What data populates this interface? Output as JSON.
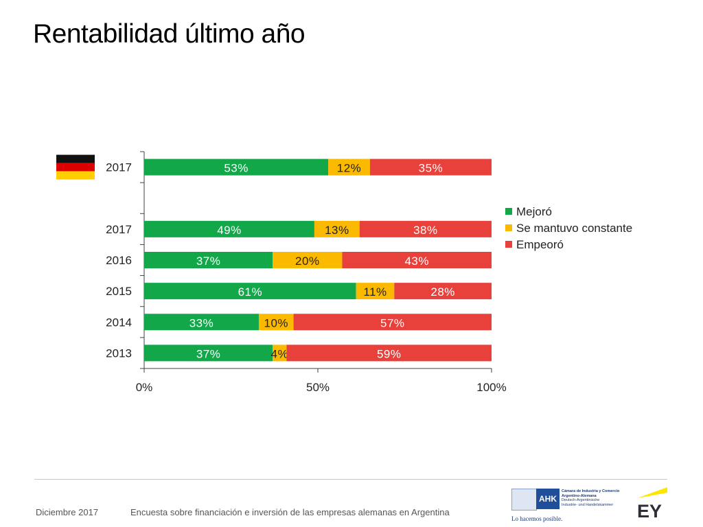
{
  "page_title": "Rentabilidad último año",
  "footer": {
    "date": "Diciembre 2017",
    "text": "Encuesta sobre financiación e inversión de las empresas alemanas en Argentina"
  },
  "logos": {
    "ahk_tag": "AHK",
    "ahk_name_lines": [
      "Cámara de Industria y Comercio",
      "Argentino-Alemana",
      "Deutsch-Argentinische",
      "Industrie- und Handelskammer"
    ],
    "ahk_slogan": "Lo hacemos posible.",
    "ey": "EY"
  },
  "colors": {
    "Mejoró": "#12a84a",
    "Se mantuvo constante": "#fbb900",
    "Empeoró": "#e8403a",
    "flag": [
      "#111111",
      "#dd0000",
      "#ffce00"
    ]
  },
  "chart_data": {
    "type": "bar",
    "orientation": "horizontal",
    "stacked": true,
    "percent_stacked": true,
    "categories": [
      "2017",
      "",
      "2017",
      "2016",
      "2015",
      "2014",
      "2013"
    ],
    "category_icons": [
      "flag-germany-icon",
      null,
      null,
      null,
      null,
      null,
      null
    ],
    "series": [
      {
        "name": "Mejoró",
        "values": [
          53,
          null,
          49,
          37,
          61,
          33,
          37
        ],
        "labels": [
          "53%",
          "",
          "49%",
          "37%",
          "61%",
          "33%",
          "37%"
        ]
      },
      {
        "name": "Se mantuvo constante",
        "values": [
          12,
          null,
          13,
          20,
          11,
          10,
          4
        ],
        "labels": [
          "12%",
          "",
          "13%",
          "20%",
          "11%",
          "10%",
          "4%"
        ]
      },
      {
        "name": "Empeoró",
        "values": [
          35,
          null,
          38,
          43,
          28,
          57,
          59
        ],
        "labels": [
          "35%",
          "",
          "38%",
          "43%",
          "28%",
          "57%",
          "59%"
        ]
      }
    ],
    "xlim": [
      0,
      100
    ],
    "x_ticks": [
      0,
      50,
      100
    ],
    "x_tick_labels": [
      "0%",
      "50%",
      "100%"
    ],
    "grid": false,
    "legend": "right"
  }
}
